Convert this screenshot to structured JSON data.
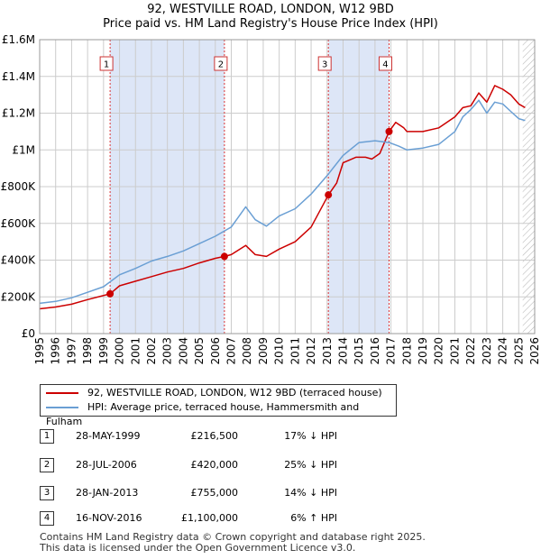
{
  "title": "92, WESTVILLE ROAD, LONDON, W12 9BD",
  "subtitle": "Price paid vs. HM Land Registry's House Price Index (HPI)",
  "colors": {
    "property": "#cc0000",
    "hpi": "#6a9fd4",
    "shade": "#dde6f7",
    "grid": "#cccccc"
  },
  "chart_data": {
    "type": "line",
    "title": "92, WESTVILLE ROAD, LONDON, W12 9BD",
    "subtitle": "Price paid vs. HM Land Registry's House Price Index (HPI)",
    "xlim": [
      1995,
      2026
    ],
    "ylim": [
      0,
      1600000
    ],
    "y_ticks": [
      {
        "value": 0,
        "label": "£0"
      },
      {
        "value": 200000,
        "label": "£200K"
      },
      {
        "value": 400000,
        "label": "£400K"
      },
      {
        "value": 600000,
        "label": "£600K"
      },
      {
        "value": 800000,
        "label": "£800K"
      },
      {
        "value": 1000000,
        "label": "£1M"
      },
      {
        "value": 1200000,
        "label": "£1.2M"
      },
      {
        "value": 1400000,
        "label": "£1.4M"
      },
      {
        "value": 1600000,
        "label": "£1.6M"
      }
    ],
    "x_ticks": [
      "1995",
      "1996",
      "1997",
      "1998",
      "1999",
      "2000",
      "2001",
      "2002",
      "2003",
      "2004",
      "2005",
      "2006",
      "2007",
      "2008",
      "2009",
      "2010",
      "2011",
      "2012",
      "2013",
      "2014",
      "2015",
      "2016",
      "2017",
      "2018",
      "2019",
      "2020",
      "2021",
      "2022",
      "2023",
      "2024",
      "2025",
      "2026"
    ],
    "shaded_periods": [
      [
        1999.41,
        2006.57
      ],
      [
        2013.08,
        2016.88
      ]
    ],
    "hatched_after": 2025.25,
    "series": [
      {
        "name": "92, WESTVILLE ROAD, LONDON, W12 9BD (terraced house)",
        "color": "#cc0000",
        "x": [
          1995,
          1996,
          1997,
          1998,
          1999.41,
          2000,
          2001,
          2002,
          2003,
          2004,
          2005,
          2006,
          2006.57,
          2007,
          2007.9,
          2008.5,
          2009.2,
          2010,
          2011,
          2012,
          2013.08,
          2013.6,
          2014,
          2014.8,
          2015.4,
          2015.8,
          2016.3,
          2016.88,
          2017.3,
          2017.8,
          2018,
          2019,
          2020,
          2021,
          2021.5,
          2022,
          2022.5,
          2023,
          2023.5,
          2024,
          2024.5,
          2025,
          2025.4
        ],
        "y": [
          135000,
          145000,
          160000,
          185000,
          216500,
          260000,
          285000,
          310000,
          335000,
          355000,
          385000,
          410000,
          420000,
          430000,
          480000,
          430000,
          420000,
          460000,
          500000,
          580000,
          755000,
          820000,
          930000,
          960000,
          960000,
          950000,
          980000,
          1100000,
          1150000,
          1120000,
          1100000,
          1100000,
          1120000,
          1180000,
          1230000,
          1240000,
          1310000,
          1260000,
          1350000,
          1330000,
          1300000,
          1250000,
          1230000
        ]
      },
      {
        "name": "HPI: Average price, terraced house, Hammersmith and Fulham",
        "color": "#6a9fd4",
        "x": [
          1995,
          1996,
          1997,
          1998,
          1999,
          2000,
          2001,
          2002,
          2003,
          2004,
          2005,
          2006,
          2007,
          2007.9,
          2008.5,
          2009.2,
          2010,
          2011,
          2012,
          2013,
          2014,
          2015,
          2016,
          2016.88,
          2017.5,
          2018,
          2019,
          2020,
          2021,
          2021.5,
          2022,
          2022.5,
          2023,
          2023.5,
          2024,
          2024.5,
          2025,
          2025.4
        ],
        "y": [
          165000,
          175000,
          195000,
          225000,
          255000,
          320000,
          355000,
          395000,
          420000,
          450000,
          490000,
          530000,
          580000,
          690000,
          620000,
          585000,
          640000,
          680000,
          760000,
          860000,
          970000,
          1040000,
          1050000,
          1040000,
          1020000,
          1000000,
          1010000,
          1030000,
          1100000,
          1180000,
          1220000,
          1270000,
          1200000,
          1260000,
          1250000,
          1210000,
          1170000,
          1160000
        ]
      }
    ],
    "sales": [
      {
        "n": "1",
        "x": 1999.41,
        "y": 216500
      },
      {
        "n": "2",
        "x": 2006.57,
        "y": 420000
      },
      {
        "n": "3",
        "x": 2013.08,
        "y": 755000
      },
      {
        "n": "4",
        "x": 2016.88,
        "y": 1100000
      }
    ]
  },
  "legend": [
    {
      "label": "92, WESTVILLE ROAD, LONDON, W12 9BD (terraced house)",
      "color": "#cc0000"
    },
    {
      "label": "HPI: Average price, terraced house, Hammersmith and Fulham",
      "color": "#6a9fd4"
    }
  ],
  "transactions": [
    {
      "n": "1",
      "date": "28-MAY-1999",
      "price": "£216,500",
      "hpi": "17% ↓ HPI"
    },
    {
      "n": "2",
      "date": "28-JUL-2006",
      "price": "£420,000",
      "hpi": "25% ↓ HPI"
    },
    {
      "n": "3",
      "date": "28-JAN-2013",
      "price": "£755,000",
      "hpi": "14% ↓ HPI"
    },
    {
      "n": "4",
      "date": "16-NOV-2016",
      "price": "£1,100,000",
      "hpi": "6% ↑ HPI"
    }
  ],
  "footer": [
    "Contains HM Land Registry data © Crown copyright and database right 2025.",
    "This data is licensed under the Open Government Licence v3.0."
  ]
}
